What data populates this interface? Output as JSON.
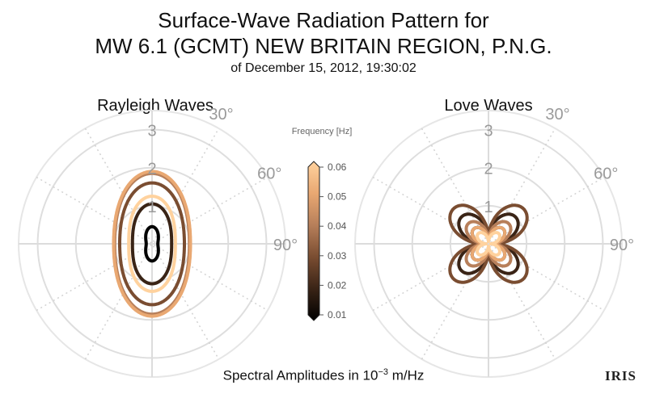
{
  "title_line1": "Surface-Wave Radiation Pattern for",
  "title_line2": "MW 6.1 (GCMT) NEW BRITAIN REGION, P.N.G.",
  "title_line3": "of December 15, 2012, 19:30:02",
  "footer_prefix": "Spectral Amplitudes in 10",
  "footer_exp": "−3",
  "footer_suffix": " m/Hz",
  "logo_text": "IRIS",
  "chart_data": [
    {
      "type": "polar-line",
      "title": "Rayleigh Waves",
      "r_ticks": [
        "1",
        "2",
        "3"
      ],
      "r_max": 3.5,
      "angle_ticks": [
        "30°",
        "60°",
        "90°"
      ],
      "series": [
        {
          "frequency": 0.01,
          "amplitude": 0.45,
          "lobe_ratio": 0.5
        },
        {
          "frequency": 0.02,
          "amplitude": 1.05,
          "lobe_ratio": 0.72
        },
        {
          "frequency": 0.03,
          "amplitude": 1.6,
          "lobe_ratio": 0.78
        },
        {
          "frequency": 0.04,
          "amplitude": 1.85,
          "lobe_ratio": 0.78
        },
        {
          "frequency": 0.05,
          "amplitude": 1.9,
          "lobe_ratio": 0.78
        },
        {
          "frequency": 0.06,
          "amplitude": 1.25,
          "lobe_ratio": 0.72
        }
      ]
    },
    {
      "type": "polar-line",
      "title": "Love Waves",
      "r_ticks": [
        "1",
        "2",
        "3"
      ],
      "r_max": 3.5,
      "angle_ticks": [
        "30°",
        "60°",
        "90°"
      ],
      "series": [
        {
          "frequency": 0.01,
          "amplitude": 0.55
        },
        {
          "frequency": 0.02,
          "amplitude": 1.0
        },
        {
          "frequency": 0.03,
          "amplitude": 1.3
        },
        {
          "frequency": 0.04,
          "amplitude": 0.75
        },
        {
          "frequency": 0.05,
          "amplitude": 0.55
        },
        {
          "frequency": 0.06,
          "amplitude": 0.38
        }
      ]
    }
  ],
  "colorbar": {
    "label": "Frequency [Hz]",
    "min": 0.01,
    "max": 0.06,
    "ticks": [
      "0.01",
      "0.02",
      "0.03",
      "0.04",
      "0.05",
      "0.06"
    ],
    "colors": [
      "#000000",
      "#3a2416",
      "#7a4d31",
      "#b77f5a",
      "#e9a872",
      "#ffd29e"
    ]
  }
}
